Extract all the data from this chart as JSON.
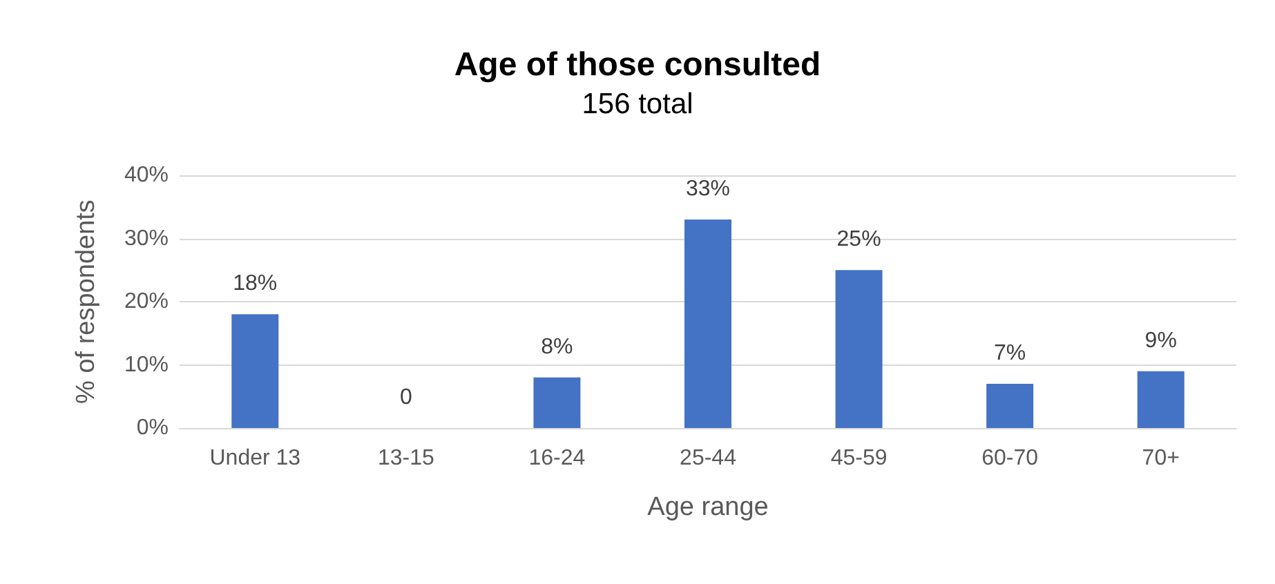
{
  "chart_data": {
    "type": "bar",
    "title": "Age of those consulted",
    "subtitle": "156 total",
    "xlabel": "Age range",
    "ylabel": "% of respondents",
    "categories": [
      "Under 13",
      "13-15",
      "16-24",
      "25-44",
      "45-59",
      "60-70",
      "70+"
    ],
    "values": [
      18,
      0,
      8,
      33,
      25,
      7,
      9
    ],
    "value_labels": [
      "18%",
      "0",
      "8%",
      "33%",
      "25%",
      "7%",
      "9%"
    ],
    "color": "#4472c4",
    "ylim": [
      0,
      40
    ],
    "yticks": [
      {
        "value": 0,
        "label": "0%"
      },
      {
        "value": 10,
        "label": "10%"
      },
      {
        "value": 20,
        "label": "20%"
      },
      {
        "value": 30,
        "label": "30%"
      },
      {
        "value": 40,
        "label": "40%"
      }
    ],
    "grid": "y"
  }
}
